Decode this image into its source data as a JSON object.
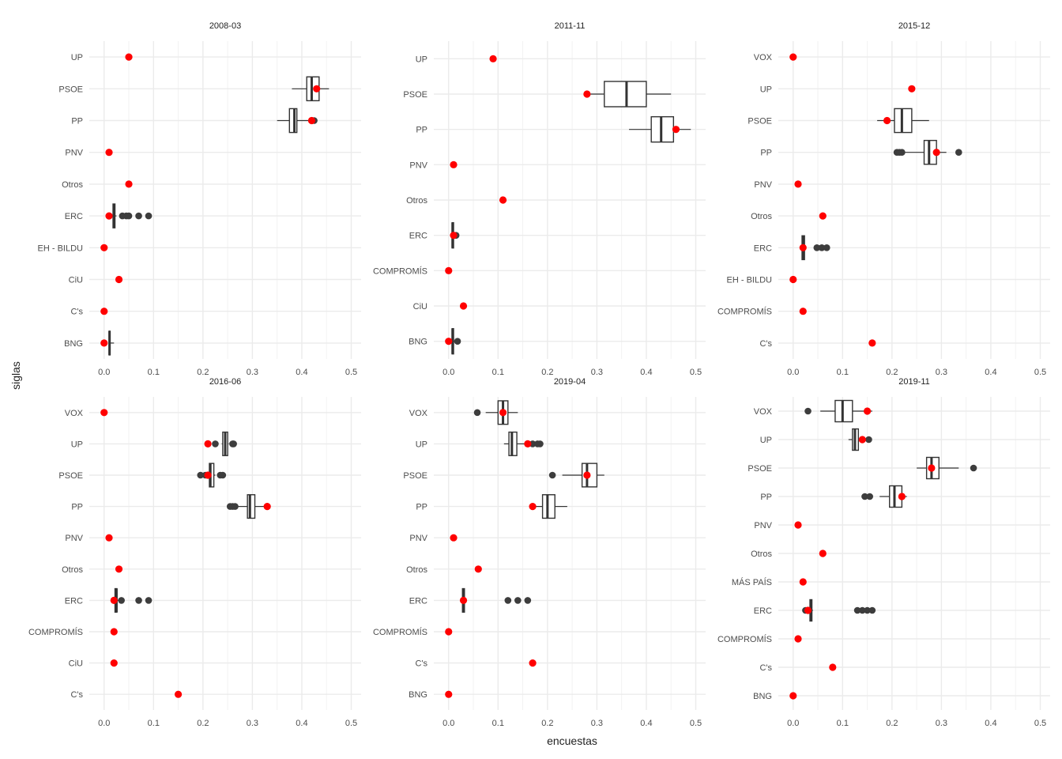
{
  "chart_data": {
    "type": "boxplot",
    "xlabel": "encuestas",
    "ylabel": "siglas",
    "xlim": [
      -0.03,
      0.52
    ],
    "xticks": [
      "0.0",
      "0.1",
      "0.2",
      "0.3",
      "0.4",
      "0.5"
    ],
    "point_color": "#ff0000",
    "box_color": "#333333",
    "outlier_color": "#3d3d3d",
    "grid": true,
    "panels": [
      {
        "title": "2008-03",
        "parties": [
          "UP",
          "PSOE",
          "PP",
          "PNV",
          "Otros",
          "ERC",
          "EH - BILDU",
          "CiU",
          "C's",
          "BNG"
        ],
        "boxes": [
          {
            "party": "PSOE",
            "wlo": 0.38,
            "q1": 0.41,
            "med": 0.42,
            "q3": 0.435,
            "whi": 0.455,
            "out": []
          },
          {
            "party": "PP",
            "wlo": 0.35,
            "q1": 0.375,
            "med": 0.385,
            "q3": 0.39,
            "whi": 0.42,
            "out": [
              0.425
            ]
          },
          {
            "party": "ERC",
            "wlo": 0.017,
            "q1": 0.018,
            "med": 0.02,
            "q3": 0.022,
            "whi": 0.025,
            "out": [
              0.037,
              0.045,
              0.05,
              0.07,
              0.09
            ]
          },
          {
            "party": "BNG",
            "wlo": 0.009,
            "q1": 0.01,
            "med": 0.011,
            "q3": 0.012,
            "whi": 0.02,
            "out": []
          }
        ],
        "results": [
          {
            "party": "UP",
            "value": 0.05
          },
          {
            "party": "PSOE",
            "value": 0.43
          },
          {
            "party": "PP",
            "value": 0.42
          },
          {
            "party": "PNV",
            "value": 0.01
          },
          {
            "party": "Otros",
            "value": 0.05
          },
          {
            "party": "ERC",
            "value": 0.01
          },
          {
            "party": "EH - BILDU",
            "value": 0.0
          },
          {
            "party": "CiU",
            "value": 0.03
          },
          {
            "party": "C's",
            "value": 0.0
          },
          {
            "party": "BNG",
            "value": 0.0
          }
        ]
      },
      {
        "title": "2011-11",
        "parties": [
          "UP",
          "PSOE",
          "PP",
          "PNV",
          "Otros",
          "ERC",
          "COMPROMÍS",
          "CiU",
          "BNG"
        ],
        "boxes": [
          {
            "party": "PSOE",
            "wlo": 0.28,
            "q1": 0.315,
            "med": 0.36,
            "q3": 0.4,
            "whi": 0.45,
            "out": []
          },
          {
            "party": "PP",
            "wlo": 0.365,
            "q1": 0.41,
            "med": 0.43,
            "q3": 0.455,
            "whi": 0.49,
            "out": []
          },
          {
            "party": "ERC",
            "wlo": 0.006,
            "q1": 0.007,
            "med": 0.008,
            "q3": 0.01,
            "whi": 0.012,
            "out": [
              0.015
            ]
          },
          {
            "party": "BNG",
            "wlo": 0.0,
            "q1": 0.007,
            "med": 0.008,
            "q3": 0.01,
            "whi": 0.012,
            "out": [
              0.018
            ]
          }
        ],
        "results": [
          {
            "party": "UP",
            "value": 0.09
          },
          {
            "party": "PSOE",
            "value": 0.28
          },
          {
            "party": "PP",
            "value": 0.46
          },
          {
            "party": "PNV",
            "value": 0.01
          },
          {
            "party": "Otros",
            "value": 0.11
          },
          {
            "party": "ERC",
            "value": 0.01
          },
          {
            "party": "COMPROMÍS",
            "value": 0.0
          },
          {
            "party": "CiU",
            "value": 0.03
          },
          {
            "party": "BNG",
            "value": 0.0
          }
        ]
      },
      {
        "title": "2015-12",
        "parties": [
          "VOX",
          "UP",
          "PSOE",
          "PP",
          "PNV",
          "Otros",
          "ERC",
          "EH - BILDU",
          "COMPROMÍS",
          "C's"
        ],
        "boxes": [
          {
            "party": "PSOE",
            "wlo": 0.17,
            "q1": 0.205,
            "med": 0.22,
            "q3": 0.24,
            "whi": 0.275,
            "out": []
          },
          {
            "party": "PP",
            "wlo": 0.225,
            "q1": 0.265,
            "med": 0.275,
            "q3": 0.29,
            "whi": 0.31,
            "out": [
              0.21,
              0.215,
              0.22,
              0.335
            ]
          },
          {
            "party": "ERC",
            "wlo": 0.017,
            "q1": 0.018,
            "med": 0.02,
            "q3": 0.023,
            "whi": 0.025,
            "out": [
              0.048,
              0.058,
              0.068
            ]
          }
        ],
        "results": [
          {
            "party": "VOX",
            "value": 0.0
          },
          {
            "party": "UP",
            "value": 0.24
          },
          {
            "party": "PSOE",
            "value": 0.19
          },
          {
            "party": "PP",
            "value": 0.29
          },
          {
            "party": "PNV",
            "value": 0.01
          },
          {
            "party": "Otros",
            "value": 0.06
          },
          {
            "party": "ERC",
            "value": 0.02
          },
          {
            "party": "EH - BILDU",
            "value": 0.0
          },
          {
            "party": "COMPROMÍS",
            "value": 0.02
          },
          {
            "party": "C's",
            "value": 0.16
          }
        ]
      },
      {
        "title": "2016-06",
        "parties": [
          "VOX",
          "UP",
          "PSOE",
          "PP",
          "PNV",
          "Otros",
          "ERC",
          "COMPROMÍS",
          "CiU",
          "C's"
        ],
        "boxes": [
          {
            "party": "UP",
            "wlo": 0.238,
            "q1": 0.24,
            "med": 0.245,
            "q3": 0.25,
            "whi": 0.252,
            "out": [
              0.21,
              0.225,
              0.26,
              0.262
            ]
          },
          {
            "party": "PSOE",
            "wlo": 0.212,
            "q1": 0.213,
            "med": 0.215,
            "q3": 0.222,
            "whi": 0.225,
            "out": [
              0.195,
              0.205,
              0.235,
              0.24
            ]
          },
          {
            "party": "PP",
            "wlo": 0.265,
            "q1": 0.29,
            "med": 0.295,
            "q3": 0.305,
            "whi": 0.33,
            "out": [
              0.255,
              0.26,
              0.265,
              0.33
            ]
          },
          {
            "party": "ERC",
            "wlo": 0.02,
            "q1": 0.022,
            "med": 0.025,
            "q3": 0.026,
            "whi": 0.03,
            "out": [
              0.035,
              0.07,
              0.09
            ]
          }
        ],
        "results": [
          {
            "party": "VOX",
            "value": 0.0
          },
          {
            "party": "UP",
            "value": 0.21
          },
          {
            "party": "PSOE",
            "value": 0.21
          },
          {
            "party": "PP",
            "value": 0.33
          },
          {
            "party": "PNV",
            "value": 0.01
          },
          {
            "party": "Otros",
            "value": 0.03
          },
          {
            "party": "ERC",
            "value": 0.02
          },
          {
            "party": "COMPROMÍS",
            "value": 0.02
          },
          {
            "party": "CiU",
            "value": 0.02
          },
          {
            "party": "C's",
            "value": 0.15
          }
        ]
      },
      {
        "title": "2019-04",
        "parties": [
          "VOX",
          "UP",
          "PSOE",
          "PP",
          "PNV",
          "Otros",
          "ERC",
          "COMPROMÍS",
          "C's",
          "BNG"
        ],
        "boxes": [
          {
            "party": "VOX",
            "wlo": 0.075,
            "q1": 0.1,
            "med": 0.11,
            "q3": 0.12,
            "whi": 0.14,
            "out": [
              0.058
            ]
          },
          {
            "party": "UP",
            "wlo": 0.112,
            "q1": 0.122,
            "med": 0.128,
            "q3": 0.138,
            "whi": 0.16,
            "out": [
              0.17,
              0.18,
              0.185
            ]
          },
          {
            "party": "PSOE",
            "wlo": 0.23,
            "q1": 0.27,
            "med": 0.28,
            "q3": 0.3,
            "whi": 0.315,
            "out": [
              0.21
            ]
          },
          {
            "party": "PP",
            "wlo": 0.17,
            "q1": 0.19,
            "med": 0.2,
            "q3": 0.215,
            "whi": 0.24,
            "out": []
          },
          {
            "party": "ERC",
            "wlo": 0.027,
            "q1": 0.028,
            "med": 0.03,
            "q3": 0.032,
            "whi": 0.033,
            "out": [
              0.12,
              0.14,
              0.16
            ]
          }
        ],
        "results": [
          {
            "party": "VOX",
            "value": 0.11
          },
          {
            "party": "UP",
            "value": 0.16
          },
          {
            "party": "PSOE",
            "value": 0.28
          },
          {
            "party": "PP",
            "value": 0.17
          },
          {
            "party": "PNV",
            "value": 0.01
          },
          {
            "party": "Otros",
            "value": 0.06
          },
          {
            "party": "ERC",
            "value": 0.03
          },
          {
            "party": "COMPROMÍS",
            "value": 0.0
          },
          {
            "party": "C's",
            "value": 0.17
          },
          {
            "party": "BNG",
            "value": 0.0
          }
        ]
      },
      {
        "title": "2019-11",
        "parties": [
          "VOX",
          "UP",
          "PSOE",
          "PP",
          "PNV",
          "Otros",
          "MÁS PAÍS",
          "ERC",
          "COMPROMÍS",
          "C's",
          "BNG"
        ],
        "boxes": [
          {
            "party": "VOX",
            "wlo": 0.055,
            "q1": 0.085,
            "med": 0.1,
            "q3": 0.12,
            "whi": 0.16,
            "out": [
              0.03
            ]
          },
          {
            "party": "UP",
            "wlo": 0.112,
            "q1": 0.12,
            "med": 0.125,
            "q3": 0.132,
            "whi": 0.145,
            "out": [
              0.153
            ]
          },
          {
            "party": "PSOE",
            "wlo": 0.25,
            "q1": 0.27,
            "med": 0.28,
            "q3": 0.295,
            "whi": 0.335,
            "out": [
              0.365
            ]
          },
          {
            "party": "PP",
            "wlo": 0.175,
            "q1": 0.195,
            "med": 0.205,
            "q3": 0.22,
            "whi": 0.23,
            "out": [
              0.145,
              0.155
            ]
          },
          {
            "party": "ERC",
            "wlo": 0.033,
            "q1": 0.034,
            "med": 0.036,
            "q3": 0.038,
            "whi": 0.04,
            "out": [
              0.025,
              0.13,
              0.14,
              0.15,
              0.16
            ]
          }
        ],
        "results": [
          {
            "party": "VOX",
            "value": 0.15
          },
          {
            "party": "UP",
            "value": 0.14
          },
          {
            "party": "PSOE",
            "value": 0.28
          },
          {
            "party": "PP",
            "value": 0.22
          },
          {
            "party": "PNV",
            "value": 0.01
          },
          {
            "party": "Otros",
            "value": 0.06
          },
          {
            "party": "MÁS PAÍS",
            "value": 0.02
          },
          {
            "party": "ERC",
            "value": 0.03
          },
          {
            "party": "COMPROMÍS",
            "value": 0.01
          },
          {
            "party": "C's",
            "value": 0.08
          },
          {
            "party": "BNG",
            "value": 0.0
          }
        ]
      }
    ]
  }
}
